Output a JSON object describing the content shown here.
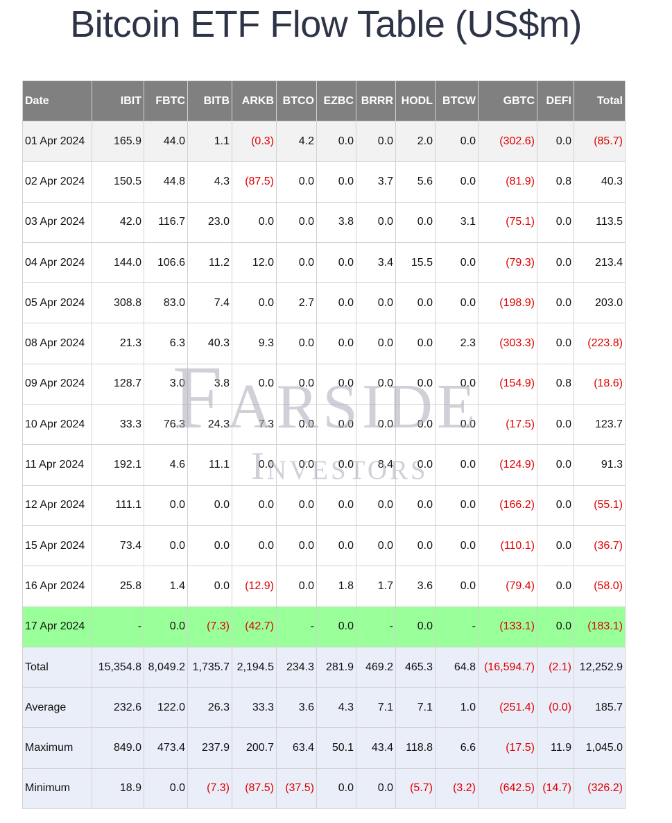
{
  "page": {
    "title": "Bitcoin ETF Flow Table (US$m)",
    "watermark_line1": "Farside",
    "watermark_line2": "Investors"
  },
  "table": {
    "headers": [
      "Date",
      "IBIT",
      "FBTC",
      "BITB",
      "ARKB",
      "BTCO",
      "EZBC",
      "BRRR",
      "HODL",
      "BTCW",
      "GBTC",
      "DEFI",
      "Total"
    ],
    "rows": [
      [
        "01 Apr 2024",
        "165.9",
        "44.0",
        "1.1",
        "(0.3)",
        "4.2",
        "0.0",
        "0.0",
        "2.0",
        "0.0",
        "(302.6)",
        "0.0",
        "(85.7)"
      ],
      [
        "02 Apr 2024",
        "150.5",
        "44.8",
        "4.3",
        "(87.5)",
        "0.0",
        "0.0",
        "3.7",
        "5.6",
        "0.0",
        "(81.9)",
        "0.8",
        "40.3"
      ],
      [
        "03 Apr 2024",
        "42.0",
        "116.7",
        "23.0",
        "0.0",
        "0.0",
        "3.8",
        "0.0",
        "0.0",
        "3.1",
        "(75.1)",
        "0.0",
        "113.5"
      ],
      [
        "04 Apr 2024",
        "144.0",
        "106.6",
        "11.2",
        "12.0",
        "0.0",
        "0.0",
        "3.4",
        "15.5",
        "0.0",
        "(79.3)",
        "0.0",
        "213.4"
      ],
      [
        "05 Apr 2024",
        "308.8",
        "83.0",
        "7.4",
        "0.0",
        "2.7",
        "0.0",
        "0.0",
        "0.0",
        "0.0",
        "(198.9)",
        "0.0",
        "203.0"
      ],
      [
        "08 Apr 2024",
        "21.3",
        "6.3",
        "40.3",
        "9.3",
        "0.0",
        "0.0",
        "0.0",
        "0.0",
        "2.3",
        "(303.3)",
        "0.0",
        "(223.8)"
      ],
      [
        "09 Apr 2024",
        "128.7",
        "3.0",
        "3.8",
        "0.0",
        "0.0",
        "0.0",
        "0.0",
        "0.0",
        "0.0",
        "(154.9)",
        "0.8",
        "(18.6)"
      ],
      [
        "10 Apr 2024",
        "33.3",
        "76.3",
        "24.3",
        "7.3",
        "0.0",
        "0.0",
        "0.0",
        "0.0",
        "0.0",
        "(17.5)",
        "0.0",
        "123.7"
      ],
      [
        "11 Apr 2024",
        "192.1",
        "4.6",
        "11.1",
        "0.0",
        "0.0",
        "0.0",
        "8.4",
        "0.0",
        "0.0",
        "(124.9)",
        "0.0",
        "91.3"
      ],
      [
        "12 Apr 2024",
        "111.1",
        "0.0",
        "0.0",
        "0.0",
        "0.0",
        "0.0",
        "0.0",
        "0.0",
        "0.0",
        "(166.2)",
        "0.0",
        "(55.1)"
      ],
      [
        "15 Apr 2024",
        "73.4",
        "0.0",
        "0.0",
        "0.0",
        "0.0",
        "0.0",
        "0.0",
        "0.0",
        "0.0",
        "(110.1)",
        "0.0",
        "(36.7)"
      ],
      [
        "16 Apr 2024",
        "25.8",
        "1.4",
        "0.0",
        "(12.9)",
        "0.0",
        "1.8",
        "1.7",
        "3.6",
        "0.0",
        "(79.4)",
        "0.0",
        "(58.0)"
      ],
      [
        "17 Apr 2024",
        "-",
        "0.0",
        "(7.3)",
        "(42.7)",
        "-",
        "0.0",
        "-",
        "0.0",
        "-",
        "(133.1)",
        "0.0",
        "(183.1)"
      ],
      [
        "Total",
        "15,354.8",
        "8,049.2",
        "1,735.7",
        "2,194.5",
        "234.3",
        "281.9",
        "469.2",
        "465.3",
        "64.8",
        "(16,594.7)",
        "(2.1)",
        "12,252.9"
      ],
      [
        "Average",
        "232.6",
        "122.0",
        "26.3",
        "33.3",
        "3.6",
        "4.3",
        "7.1",
        "7.1",
        "1.0",
        "(251.4)",
        "(0.0)",
        "185.7"
      ],
      [
        "Maximum",
        "849.0",
        "473.4",
        "237.9",
        "200.7",
        "63.4",
        "50.1",
        "43.4",
        "118.8",
        "6.6",
        "(17.5)",
        "11.9",
        "1,045.0"
      ],
      [
        "Minimum",
        "18.9",
        "0.0",
        "(7.3)",
        "(87.5)",
        "(37.5)",
        "0.0",
        "0.0",
        "(5.7)",
        "(3.2)",
        "(642.5)",
        "(14.7)",
        "(326.2)"
      ]
    ],
    "highlight_row_index": 12,
    "summary_row_start_index": 13
  },
  "colors": {
    "header_bg": "#808080",
    "header_text": "#ffffff",
    "first_row_bg": "#f2f2f2",
    "highlight_row_bg": "#99ff99",
    "summary_row_bg": "#eaeef8",
    "negative_text": "#e00000",
    "title_text": "#2e3447"
  }
}
